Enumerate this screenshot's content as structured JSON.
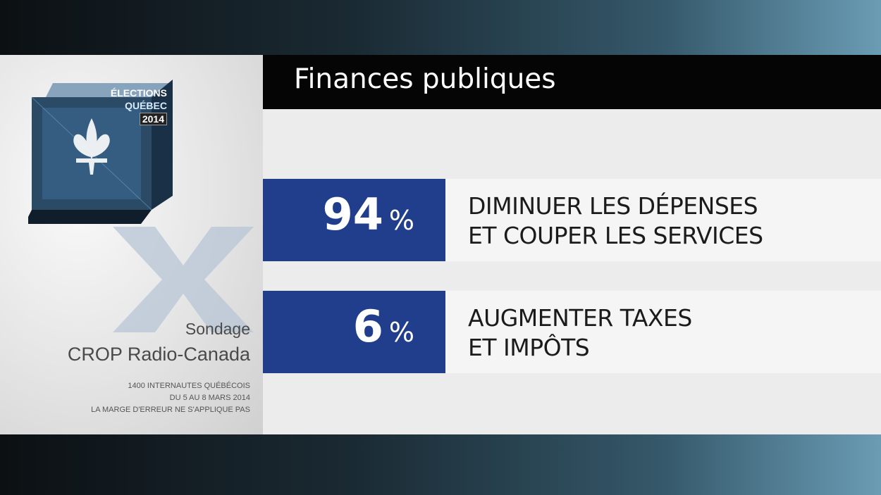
{
  "header": {
    "title": "Finances publiques"
  },
  "logo": {
    "line1": "ÉLECTIONS",
    "line2": "QUÉBEC",
    "line3": "2014"
  },
  "source": {
    "line1": "Sondage",
    "line2": "CROP Radio-Canada",
    "notes": [
      "1400 INTERNAUTES QUÉBÉCOIS",
      "DU 5 AU 8 MARS 2014",
      "LA MARGE D'ERREUR NE S'APPLIQUE PAS"
    ]
  },
  "results": [
    {
      "value": "94",
      "unit": "%",
      "label_line1": "DIMINUER LES DÉPENSES",
      "label_line2": "ET COUPER LES SERVICES"
    },
    {
      "value": "6",
      "unit": "%",
      "label_line1": "AUGMENTER TAXES",
      "label_line2": "ET IMPÔTS"
    }
  ],
  "colors": {
    "accent_blue": "#213e8c",
    "title_bar": "#050505",
    "panel": "#ececec"
  },
  "icons": [
    "ballot-box-icon",
    "fleur-de-lis-icon",
    "vote-x-icon"
  ]
}
